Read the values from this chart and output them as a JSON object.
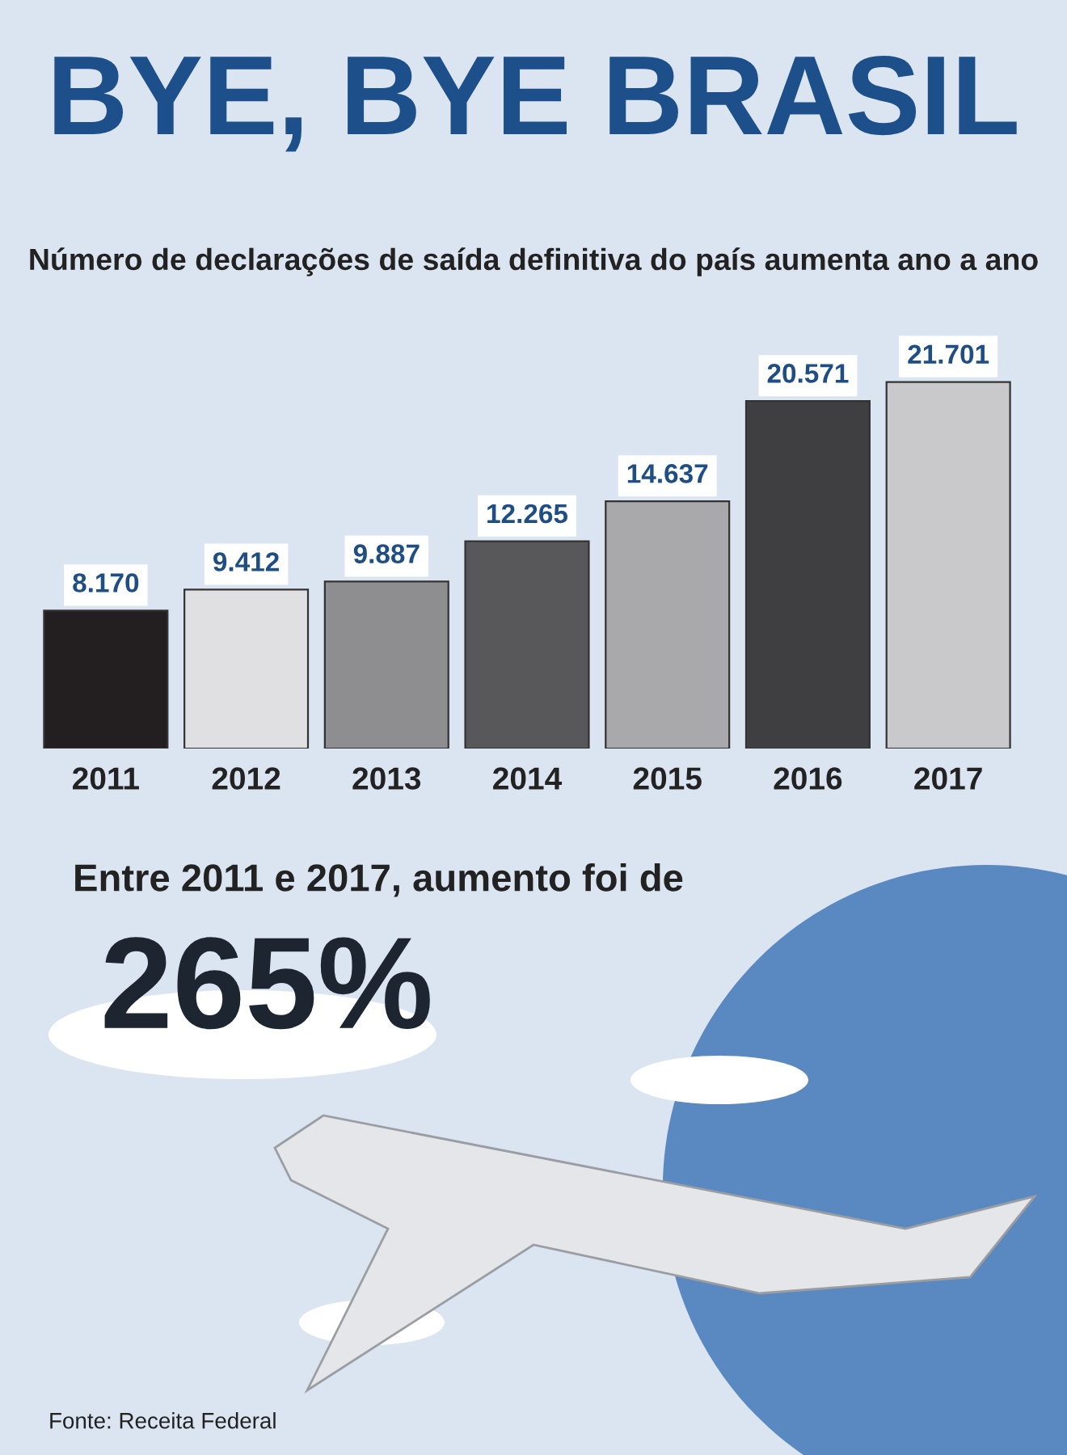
{
  "chart_data": {
    "type": "bar",
    "title": "BYE, BYE BRASIL",
    "subtitle": "Número de declarações de saída definitiva do país aumenta ano a ano",
    "categories": [
      "2011",
      "2012",
      "2013",
      "2014",
      "2015",
      "2016",
      "2017"
    ],
    "values": [
      8170,
      9412,
      9887,
      12265,
      14637,
      20571,
      21701
    ],
    "value_labels": [
      "8.170",
      "9.412",
      "9.887",
      "12.265",
      "14.637",
      "20.571",
      "21.701"
    ],
    "colors": [
      "#231f20",
      "#e0e0e2",
      "#8e8e90",
      "#58585a",
      "#a9a9ab",
      "#3f3f41",
      "#c9c9cb"
    ],
    "annotations": [
      "Entre 2011 e 2017, aumento foi de",
      "265%",
      "Fonte: Receita Federal"
    ]
  }
}
